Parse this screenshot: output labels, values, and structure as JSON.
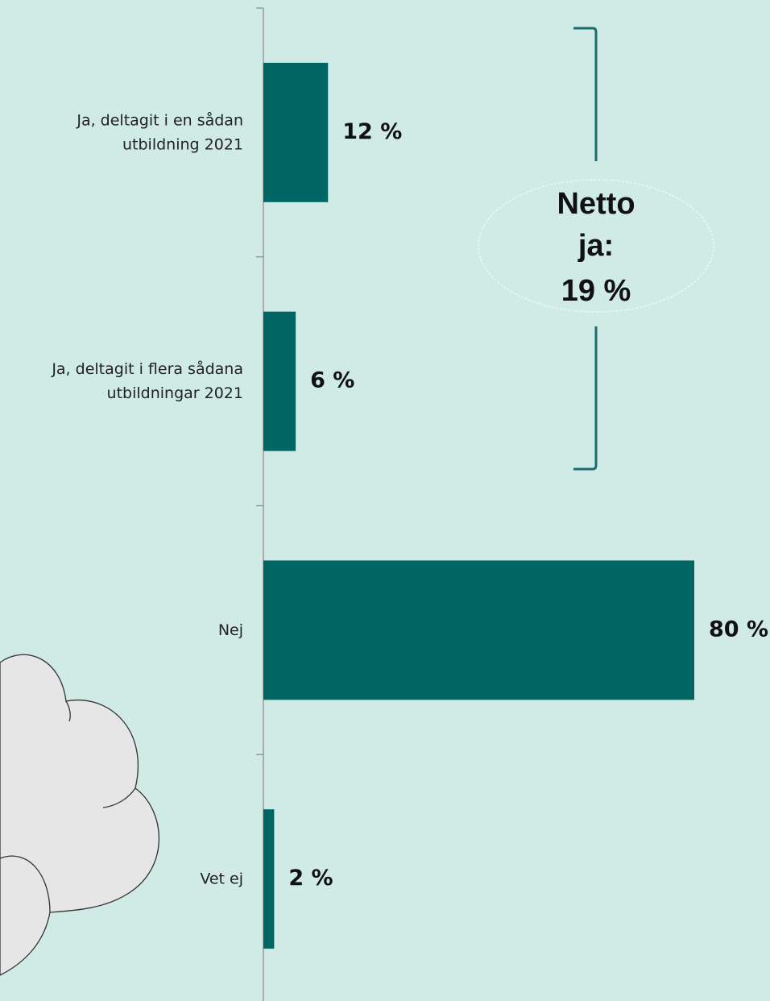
{
  "chart_data": {
    "type": "barh",
    "categories": [
      "Ja, deltagit i en sådan utbildning 2021",
      "Ja, deltagit i flera sådana utbildningar 2021",
      "Nej",
      "Vet ej"
    ],
    "values": [
      12,
      6,
      80,
      2
    ],
    "value_labels": [
      "12 %",
      "6 %",
      "80 %",
      "2 %"
    ],
    "color": "#006663",
    "xlim": [
      0,
      80
    ],
    "annotation": [
      "Netto",
      "ja:",
      "19 %"
    ]
  }
}
